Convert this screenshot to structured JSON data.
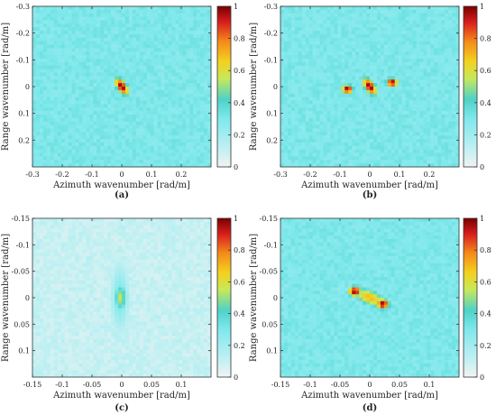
{
  "colorbar": {
    "ticks": [
      "1",
      "0.8",
      "0.6",
      "0.4",
      "0.2",
      "0"
    ],
    "colors": [
      "#f2f2f2",
      "#7fe8ec",
      "#4fd2c8",
      "#c8e85a",
      "#f4d01e",
      "#f58a1a",
      "#d81e1e",
      "#7a0000"
    ]
  },
  "panels": [
    {
      "caption": "(a)",
      "xlabel": "Azimuth wavenumber [rad/m]",
      "ylabel": "Range wavenumber [rad/m]",
      "xticks": [
        "-0.3",
        "-0.2",
        "-0.1",
        "0",
        "0.1",
        "0.2"
      ],
      "yticks": [
        "-0.3",
        "-0.2",
        "-0.1",
        "0",
        "0.1",
        "0.2"
      ]
    },
    {
      "caption": "(b)",
      "xlabel": "Azimuth wavenumber [rad/m]",
      "ylabel": "Range wavenumber [rad/m]",
      "xticks": [
        "-0.3",
        "-0.2",
        "-0.1",
        "0",
        "0.1",
        "0.2"
      ],
      "yticks": [
        "-0.3",
        "-0.2",
        "-0.1",
        "0",
        "0.1",
        "0.2"
      ]
    },
    {
      "caption": "(c)",
      "xlabel": "Azimuth wavenumber [rad/m]",
      "ylabel": "Range wavenumber [rad/m]",
      "xticks": [
        "-0.15",
        "-0.1",
        "-0.05",
        "0",
        "0.05",
        "0.1"
      ],
      "yticks": [
        "-0.15",
        "-0.1",
        "-0.05",
        "0",
        "0.05",
        "0.1"
      ]
    },
    {
      "caption": "(d)",
      "xlabel": "Azimuth wavenumber [rad/m]",
      "ylabel": "Range wavenumber [rad/m]",
      "xticks": [
        "-0.15",
        "-0.1",
        "-0.05",
        "0",
        "0.05",
        "0.1"
      ],
      "yticks": [
        "-0.15",
        "-0.1",
        "-0.05",
        "0",
        "0.05",
        "0.1"
      ]
    }
  ],
  "chart_data": [
    {
      "type": "heatmap",
      "panel": "(a)",
      "xlabel": "Azimuth wavenumber [rad/m]",
      "ylabel": "Range wavenumber [rad/m]",
      "xlim": [
        -0.3,
        0.3
      ],
      "ylim": [
        -0.3,
        0.3
      ],
      "y_reversed": true,
      "xticks": [
        -0.3,
        -0.2,
        -0.1,
        0,
        0.1,
        0.2
      ],
      "yticks": [
        -0.3,
        -0.2,
        -0.1,
        0,
        0.1,
        0.2
      ],
      "clim": [
        0,
        1
      ],
      "colorbar_ticks": [
        0,
        0.2,
        0.4,
        0.6,
        0.8,
        1
      ],
      "background_level": 0.3,
      "peaks": [
        {
          "kx": 0.0,
          "ky": 0.0,
          "value": 1.0,
          "sx": 0.014,
          "sy": 0.03,
          "rot_deg": -30
        }
      ]
    },
    {
      "type": "heatmap",
      "panel": "(b)",
      "xlabel": "Azimuth wavenumber [rad/m]",
      "ylabel": "Range wavenumber [rad/m]",
      "xlim": [
        -0.3,
        0.3
      ],
      "ylim": [
        -0.3,
        0.3
      ],
      "y_reversed": true,
      "xticks": [
        -0.3,
        -0.2,
        -0.1,
        0,
        0.1,
        0.2
      ],
      "yticks": [
        -0.3,
        -0.2,
        -0.1,
        0,
        0.1,
        0.2
      ],
      "clim": [
        0,
        1
      ],
      "colorbar_ticks": [
        0,
        0.2,
        0.4,
        0.6,
        0.8,
        1
      ],
      "background_level": 0.3,
      "peaks": [
        {
          "kx": -0.075,
          "ky": 0.01,
          "value": 1.0,
          "sx": 0.016,
          "sy": 0.014,
          "rot_deg": 0
        },
        {
          "kx": 0.0,
          "ky": 0.0,
          "value": 1.0,
          "sx": 0.014,
          "sy": 0.03,
          "rot_deg": -30
        },
        {
          "kx": 0.075,
          "ky": -0.015,
          "value": 1.0,
          "sx": 0.016,
          "sy": 0.014,
          "rot_deg": 0
        }
      ]
    },
    {
      "type": "heatmap",
      "panel": "(c)",
      "xlabel": "Azimuth wavenumber [rad/m]",
      "ylabel": "Range wavenumber [rad/m]",
      "xlim": [
        -0.15,
        0.15
      ],
      "ylim": [
        -0.15,
        0.15
      ],
      "y_reversed": true,
      "xticks": [
        -0.15,
        -0.1,
        -0.05,
        0,
        0.05,
        0.1
      ],
      "yticks": [
        -0.15,
        -0.1,
        -0.05,
        0,
        0.05,
        0.1
      ],
      "clim": [
        0,
        1
      ],
      "colorbar_ticks": [
        0,
        0.2,
        0.4,
        0.6,
        0.8,
        1
      ],
      "background_level": 0.1,
      "peaks": [
        {
          "kx": -0.002,
          "ky": 0.0,
          "value": 0.55,
          "sx": 0.008,
          "sy": 0.02,
          "rot_deg": 0
        },
        {
          "kx": -0.003,
          "ky": 0.0,
          "value": 0.3,
          "sx": 0.012,
          "sy": 0.05,
          "rot_deg": 0
        }
      ]
    },
    {
      "type": "heatmap",
      "panel": "(d)",
      "xlabel": "Azimuth wavenumber [rad/m]",
      "ylabel": "Range wavenumber [rad/m]",
      "xlim": [
        -0.15,
        0.15
      ],
      "ylim": [
        -0.15,
        0.15
      ],
      "y_reversed": true,
      "xticks": [
        -0.15,
        -0.1,
        -0.05,
        0,
        0.05,
        0.1
      ],
      "yticks": [
        -0.15,
        -0.1,
        -0.05,
        0,
        0.05,
        0.1
      ],
      "clim": [
        0,
        1
      ],
      "colorbar_ticks": [
        0,
        0.2,
        0.4,
        0.6,
        0.8,
        1
      ],
      "background_level": 0.3,
      "peaks": [
        {
          "kx": -0.025,
          "ky": -0.012,
          "value": 1.0,
          "sx": 0.009,
          "sy": 0.008,
          "rot_deg": 0
        },
        {
          "kx": 0.022,
          "ky": 0.012,
          "value": 1.0,
          "sx": 0.009,
          "sy": 0.008,
          "rot_deg": 0
        },
        {
          "kx": 0.0,
          "ky": 0.0,
          "value": 0.7,
          "sx": 0.025,
          "sy": 0.012,
          "rot_deg": 25
        }
      ]
    }
  ]
}
